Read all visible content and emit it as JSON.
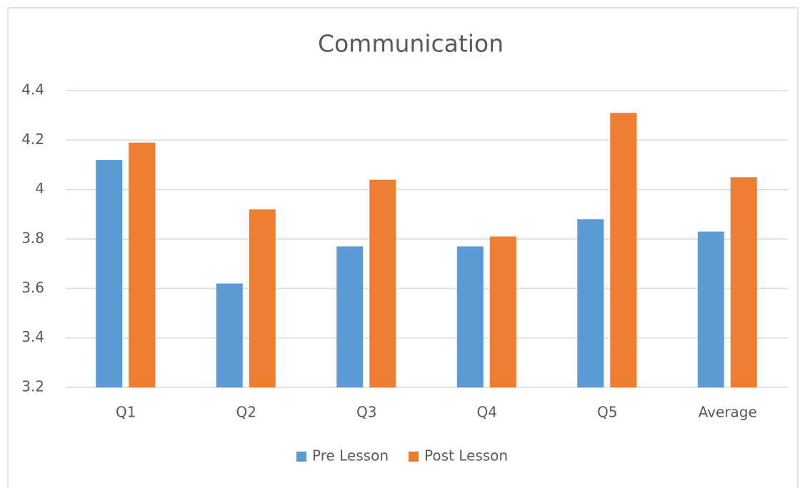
{
  "chart_data": {
    "type": "bar",
    "title": "Communication",
    "categories": [
      "Q1",
      "Q2",
      "Q3",
      "Q4",
      "Q5",
      "Average"
    ],
    "series": [
      {
        "name": "Pre Lesson",
        "color": "#5b9bd5",
        "values": [
          4.12,
          3.62,
          3.77,
          3.77,
          3.88,
          3.83
        ]
      },
      {
        "name": "Post Lesson",
        "color": "#ed7d31",
        "values": [
          4.19,
          3.92,
          4.04,
          3.81,
          4.31,
          4.05
        ]
      }
    ],
    "ylim": [
      3.2,
      4.4
    ],
    "yticks": [
      3.2,
      3.4,
      3.6,
      3.8,
      4,
      4.2,
      4.4
    ],
    "grid": true,
    "legend": "bottom"
  }
}
